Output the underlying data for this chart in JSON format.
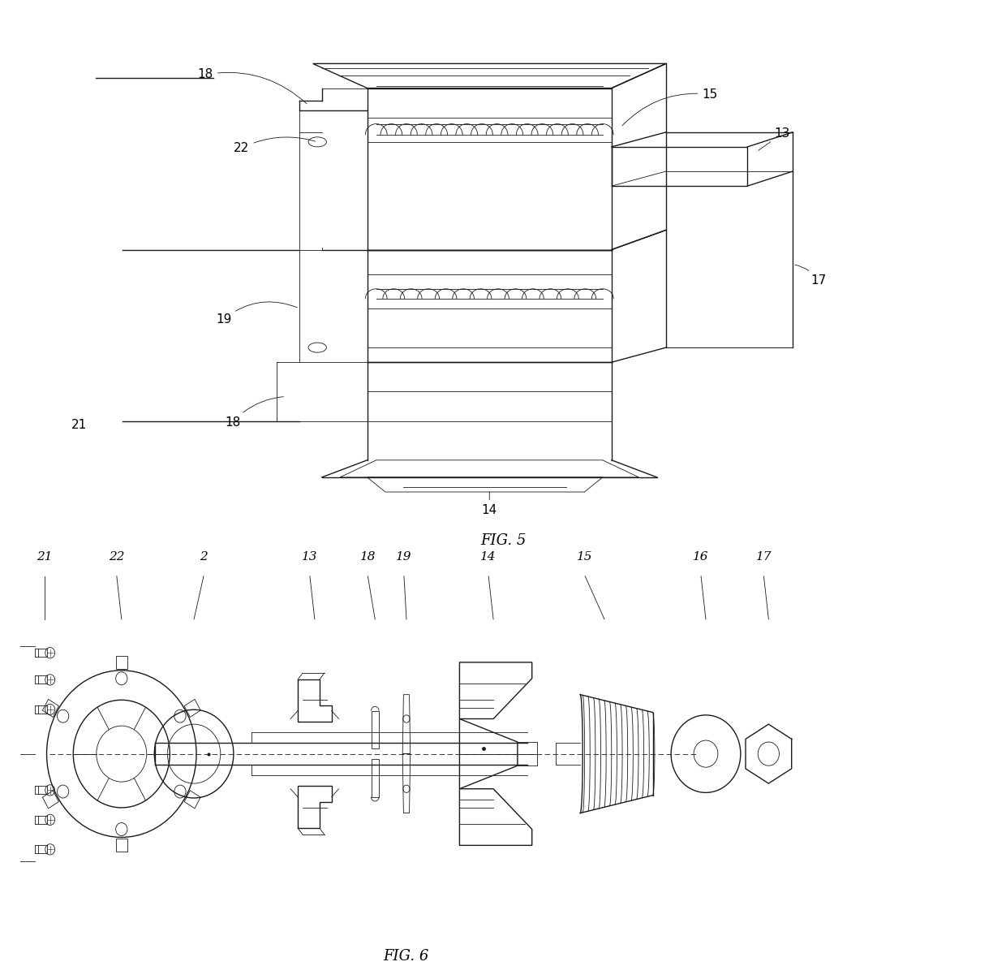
{
  "fig5_caption": "FIG. 5",
  "fig6_caption": "FIG. 6",
  "line_color": "#000000",
  "bg_color": "#ffffff",
  "label_fontsize": 11,
  "caption_fontsize": 13
}
